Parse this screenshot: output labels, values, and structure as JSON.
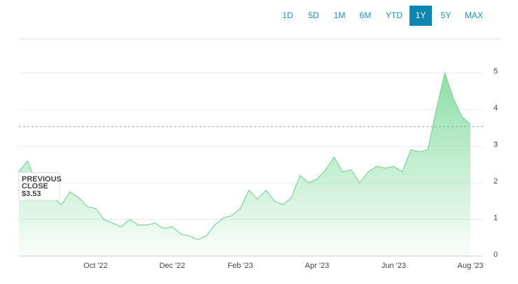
{
  "ranges": [
    "1D",
    "5D",
    "1M",
    "6M",
    "YTD",
    "1Y",
    "5Y",
    "MAX"
  ],
  "active_range": "1Y",
  "chart_data": {
    "type": "area",
    "color": "#7dd69a",
    "categories": [
      null,
      null,
      null,
      null,
      null,
      null,
      null,
      null,
      null,
      "Oct '22",
      null,
      null,
      null,
      null,
      null,
      null,
      null,
      null,
      "Dec '22",
      null,
      null,
      null,
      null,
      null,
      null,
      null,
      "Feb '23",
      null,
      null,
      null,
      null,
      null,
      null,
      null,
      null,
      "Apr '23",
      null,
      null,
      null,
      null,
      null,
      null,
      null,
      null,
      "Jun '23",
      null,
      null,
      null,
      null,
      null,
      null,
      null,
      null,
      "Aug '23"
    ],
    "values": [
      2.3,
      2.6,
      2.0,
      1.7,
      1.6,
      1.4,
      1.75,
      1.6,
      1.35,
      1.3,
      1.0,
      0.9,
      0.8,
      1.0,
      0.85,
      0.85,
      0.9,
      0.75,
      0.8,
      0.6,
      0.55,
      0.45,
      0.55,
      0.85,
      1.05,
      1.1,
      1.3,
      1.8,
      1.55,
      1.8,
      1.5,
      1.4,
      1.6,
      2.2,
      2.0,
      2.1,
      2.35,
      2.7,
      2.3,
      2.35,
      2.0,
      2.3,
      2.45,
      2.4,
      2.45,
      2.3,
      2.9,
      2.85,
      2.9,
      4.0,
      5.0,
      4.3,
      3.8,
      3.6
    ],
    "ylim": [
      0,
      6
    ],
    "yticks": [
      0,
      1,
      2,
      3,
      4,
      5
    ],
    "grid": true,
    "previous_close_title": "PREVIOUS CLOSE",
    "previous_close": {
      "value": 3.53,
      "label": "$3.53"
    }
  }
}
